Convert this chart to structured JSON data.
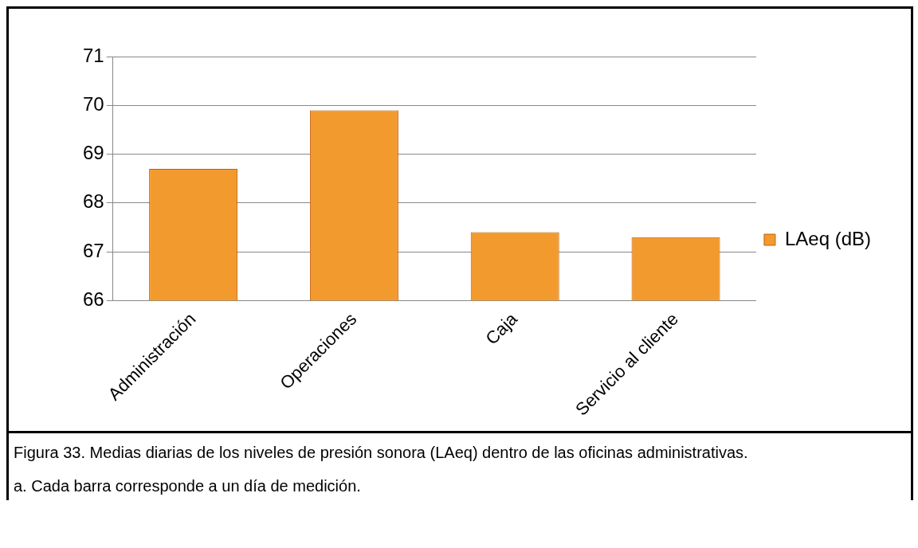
{
  "chart_data": {
    "type": "bar",
    "categories": [
      "Administración",
      "Operaciones",
      "Caja",
      "Servicio al cliente"
    ],
    "series": [
      {
        "name": "LAeq (dB)",
        "color": "#f39a2e",
        "values": [
          68.7,
          69.9,
          67.4,
          67.3
        ]
      }
    ],
    "ylim": [
      66,
      71
    ],
    "yticks": [
      66,
      67,
      68,
      69,
      70,
      71
    ],
    "grid": "y",
    "legend": "right",
    "annotations": [
      "Figura 33. Medias diarias de los niveles de presión sonora (LAeq) dentro de las oficinas administrativas.",
      "a. Cada barra corresponde a un día de medición."
    ]
  }
}
